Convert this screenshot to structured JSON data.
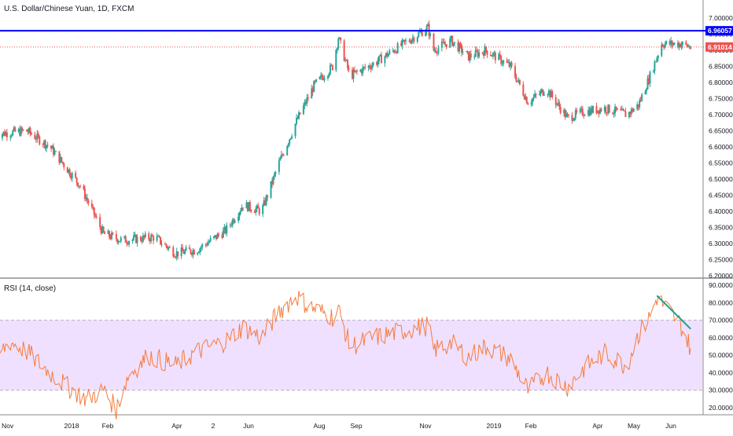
{
  "chart_data": [
    {
      "type": "candlestick",
      "title": "U.S. Dollar/Chinese Yuan, 1D, FXCM",
      "ylim": [
        6.2,
        7.0
      ],
      "y_ticks": [
        "7.00000",
        "6.95000",
        "6.90000",
        "6.85000",
        "6.80000",
        "6.75000",
        "6.70000",
        "6.65000",
        "6.60000",
        "6.55000",
        "6.50000",
        "6.45000",
        "6.40000",
        "6.35000",
        "6.30000",
        "6.25000",
        "6.20000"
      ],
      "x_ticks": [
        "Nov",
        "2018",
        "Feb",
        "Apr",
        "2",
        "Jun",
        "Aug",
        "Sep",
        "Nov",
        "2019",
        "Feb",
        "Apr",
        "May",
        "Jun"
      ],
      "key_points": [
        {
          "date": "2017-10-25",
          "close": 6.64
        },
        {
          "date": "2017-11-20",
          "close": 6.65
        },
        {
          "date": "2017-12-10",
          "close": 6.6
        },
        {
          "date": "2018-01-05",
          "close": 6.48
        },
        {
          "date": "2018-01-25",
          "close": 6.33
        },
        {
          "date": "2018-02-10",
          "close": 6.31
        },
        {
          "date": "2018-03-10",
          "close": 6.32
        },
        {
          "date": "2018-03-28",
          "close": 6.27
        },
        {
          "date": "2018-04-15",
          "close": 6.28
        },
        {
          "date": "2018-05-10",
          "close": 6.34
        },
        {
          "date": "2018-05-25",
          "close": 6.42
        },
        {
          "date": "2018-06-10",
          "close": 6.4
        },
        {
          "date": "2018-06-25",
          "close": 6.55
        },
        {
          "date": "2018-07-10",
          "close": 6.68
        },
        {
          "date": "2018-07-25",
          "close": 6.79
        },
        {
          "date": "2018-08-10",
          "close": 6.85
        },
        {
          "date": "2018-08-15",
          "close": 6.94
        },
        {
          "date": "2018-08-25",
          "close": 6.82
        },
        {
          "date": "2018-09-15",
          "close": 6.86
        },
        {
          "date": "2018-10-10",
          "close": 6.92
        },
        {
          "date": "2018-10-31",
          "close": 6.97
        },
        {
          "date": "2018-11-05",
          "close": 6.9
        },
        {
          "date": "2018-11-20",
          "close": 6.93
        },
        {
          "date": "2018-12-05",
          "close": 6.88
        },
        {
          "date": "2018-12-20",
          "close": 6.9
        },
        {
          "date": "2019-01-10",
          "close": 6.85
        },
        {
          "date": "2019-01-25",
          "close": 6.74
        },
        {
          "date": "2019-02-10",
          "close": 6.78
        },
        {
          "date": "2019-02-28",
          "close": 6.69
        },
        {
          "date": "2019-03-15",
          "close": 6.71
        },
        {
          "date": "2019-04-01",
          "close": 6.72
        },
        {
          "date": "2019-04-20",
          "close": 6.7
        },
        {
          "date": "2019-04-30",
          "close": 6.73
        },
        {
          "date": "2019-05-10",
          "close": 6.82
        },
        {
          "date": "2019-05-20",
          "close": 6.92
        },
        {
          "date": "2019-06-05",
          "close": 6.92
        },
        {
          "date": "2019-06-14",
          "close": 6.91
        }
      ],
      "resistance_line": {
        "value": 6.96057,
        "label": "6.96057",
        "color": "#0000ff"
      },
      "last_price_line": {
        "value": 6.91014,
        "label": "6.91014",
        "color": "#ef5350"
      },
      "up_color": "#26a69a",
      "down_color": "#ef5350"
    },
    {
      "type": "line",
      "title": "RSI (14, close)",
      "ylim": [
        15,
        92
      ],
      "y_ticks": [
        "90.0000",
        "80.0000",
        "70.0000",
        "60.0000",
        "50.0000",
        "40.0000",
        "30.0000",
        "20.0000"
      ],
      "band": {
        "upper": 70,
        "lower": 30,
        "fill": "#f0e0ff"
      },
      "line_color": "#f57c3c",
      "key_points": [
        {
          "date": "2017-10-25",
          "rsi": 48
        },
        {
          "date": "2017-11-05",
          "rsi": 58
        },
        {
          "date": "2017-11-20",
          "rsi": 52
        },
        {
          "date": "2017-12-10",
          "rsi": 40
        },
        {
          "date": "2017-12-25",
          "rsi": 32
        },
        {
          "date": "2018-01-10",
          "rsi": 25
        },
        {
          "date": "2018-01-25",
          "rsi": 30
        },
        {
          "date": "2018-02-05",
          "rsi": 19
        },
        {
          "date": "2018-02-15",
          "rsi": 38
        },
        {
          "date": "2018-03-05",
          "rsi": 50
        },
        {
          "date": "2018-03-28",
          "rsi": 44
        },
        {
          "date": "2018-04-15",
          "rsi": 52
        },
        {
          "date": "2018-05-10",
          "rsi": 58
        },
        {
          "date": "2018-05-25",
          "rsi": 66
        },
        {
          "date": "2018-06-10",
          "rsi": 60
        },
        {
          "date": "2018-06-25",
          "rsi": 75
        },
        {
          "date": "2018-07-10",
          "rsi": 84
        },
        {
          "date": "2018-07-20",
          "rsi": 78
        },
        {
          "date": "2018-08-10",
          "rsi": 72
        },
        {
          "date": "2018-08-15",
          "rsi": 76
        },
        {
          "date": "2018-08-25",
          "rsi": 55
        },
        {
          "date": "2018-09-15",
          "rsi": 60
        },
        {
          "date": "2018-10-10",
          "rsi": 64
        },
        {
          "date": "2018-10-31",
          "rsi": 67
        },
        {
          "date": "2018-11-05",
          "rsi": 53
        },
        {
          "date": "2018-11-20",
          "rsi": 57
        },
        {
          "date": "2018-12-05",
          "rsi": 49
        },
        {
          "date": "2018-12-20",
          "rsi": 55
        },
        {
          "date": "2019-01-10",
          "rsi": 48
        },
        {
          "date": "2019-01-25",
          "rsi": 30
        },
        {
          "date": "2019-02-10",
          "rsi": 40
        },
        {
          "date": "2019-02-28",
          "rsi": 32
        },
        {
          "date": "2019-03-15",
          "rsi": 43
        },
        {
          "date": "2019-04-01",
          "rsi": 51
        },
        {
          "date": "2019-04-20",
          "rsi": 44
        },
        {
          "date": "2019-04-30",
          "rsi": 62
        },
        {
          "date": "2019-05-10",
          "rsi": 72
        },
        {
          "date": "2019-05-16",
          "rsi": 83
        },
        {
          "date": "2019-05-28",
          "rsi": 74
        },
        {
          "date": "2019-06-05",
          "rsi": 68
        },
        {
          "date": "2019-06-14",
          "rsi": 54
        }
      ],
      "trendline": {
        "from": {
          "date": "2019-05-16",
          "rsi": 84
        },
        "to": {
          "date": "2019-06-14",
          "rsi": 65
        },
        "color": "#1f9e8f"
      }
    }
  ]
}
